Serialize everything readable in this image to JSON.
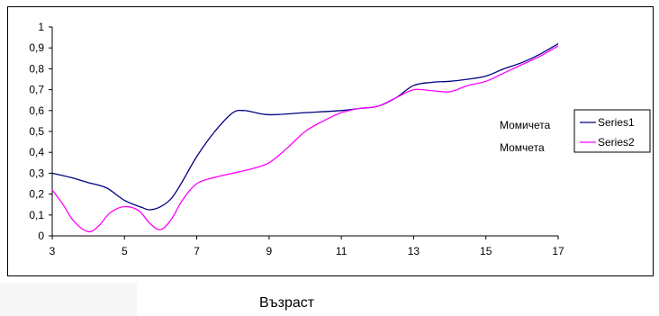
{
  "chart_data": {
    "type": "line",
    "xlabel": "Възраст",
    "ylabel": "",
    "xlim": [
      3,
      17
    ],
    "ylim": [
      0,
      1
    ],
    "x_ticks": [
      "3",
      "5",
      "7",
      "9",
      "11",
      "13",
      "15",
      "17"
    ],
    "y_ticks": [
      "0",
      "0,1",
      "0,2",
      "0,3",
      "0,4",
      "0,5",
      "0,6",
      "0,7",
      "0,8",
      "0,9",
      "1"
    ],
    "grid": false,
    "legend_position": "right",
    "annotations": [
      "Момичета",
      "Момчета"
    ],
    "series": [
      {
        "name": "Series1",
        "color": "#000080",
        "points": [
          [
            3,
            0.3
          ],
          [
            3.5,
            0.28
          ],
          [
            4,
            0.255
          ],
          [
            4.5,
            0.23
          ],
          [
            5,
            0.17
          ],
          [
            5.5,
            0.135
          ],
          [
            5.7,
            0.125
          ],
          [
            6,
            0.14
          ],
          [
            6.3,
            0.18
          ],
          [
            6.6,
            0.26
          ],
          [
            7,
            0.38
          ],
          [
            7.5,
            0.5
          ],
          [
            8,
            0.59
          ],
          [
            8.3,
            0.6
          ],
          [
            8.5,
            0.595
          ],
          [
            9,
            0.58
          ],
          [
            10,
            0.59
          ],
          [
            11,
            0.6
          ],
          [
            11.5,
            0.61
          ],
          [
            12,
            0.62
          ],
          [
            12.5,
            0.66
          ],
          [
            13,
            0.72
          ],
          [
            13.5,
            0.735
          ],
          [
            14,
            0.74
          ],
          [
            14.5,
            0.75
          ],
          [
            15,
            0.765
          ],
          [
            15.5,
            0.8
          ],
          [
            16,
            0.83
          ],
          [
            16.5,
            0.87
          ],
          [
            17,
            0.92
          ]
        ]
      },
      {
        "name": "Series2",
        "color": "#ff00ff",
        "points": [
          [
            3,
            0.22
          ],
          [
            3.3,
            0.15
          ],
          [
            3.6,
            0.07
          ],
          [
            4,
            0.02
          ],
          [
            4.3,
            0.05
          ],
          [
            4.6,
            0.11
          ],
          [
            5,
            0.14
          ],
          [
            5.4,
            0.12
          ],
          [
            5.7,
            0.06
          ],
          [
            6,
            0.03
          ],
          [
            6.3,
            0.08
          ],
          [
            6.6,
            0.17
          ],
          [
            7,
            0.25
          ],
          [
            7.5,
            0.28
          ],
          [
            8,
            0.3
          ],
          [
            8.5,
            0.32
          ],
          [
            9,
            0.35
          ],
          [
            9.5,
            0.42
          ],
          [
            10,
            0.5
          ],
          [
            10.5,
            0.55
          ],
          [
            11,
            0.59
          ],
          [
            11.5,
            0.61
          ],
          [
            12,
            0.62
          ],
          [
            12.5,
            0.66
          ],
          [
            13,
            0.7
          ],
          [
            13.5,
            0.695
          ],
          [
            14,
            0.69
          ],
          [
            14.5,
            0.72
          ],
          [
            15,
            0.74
          ],
          [
            15.5,
            0.78
          ],
          [
            16,
            0.82
          ],
          [
            16.5,
            0.86
          ],
          [
            17,
            0.91
          ]
        ]
      }
    ]
  }
}
